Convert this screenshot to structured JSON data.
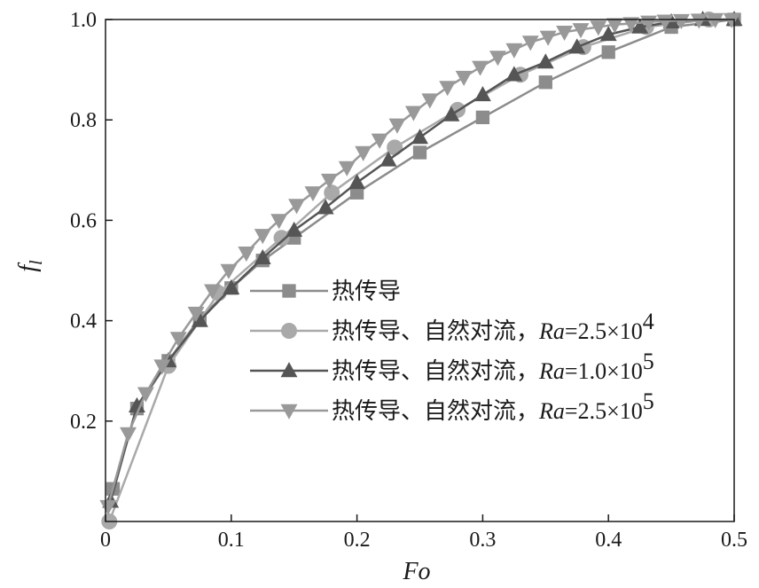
{
  "chart_data": {
    "type": "line",
    "xlabel": "Fo",
    "ylabel_main": "f",
    "ylabel_sub": "l",
    "xlim": [
      0,
      0.5
    ],
    "ylim": [
      0,
      1.0
    ],
    "x_ticks": [
      0,
      0.1,
      0.2,
      0.3,
      0.4,
      0.5
    ],
    "x_tick_labels": [
      "0",
      "0.1",
      "0.2",
      "0.3",
      "0.4",
      "0.5"
    ],
    "y_ticks": [
      0.2,
      0.4,
      0.6,
      0.8,
      1.0
    ],
    "y_tick_labels": [
      "0.2",
      "0.4",
      "0.6",
      "0.8",
      "1.0"
    ],
    "grid": false,
    "legend_position": "center-right",
    "series": [
      {
        "name": "热传导",
        "name_ra": "",
        "marker": "square",
        "color": "#8c8c8c",
        "x": [
          0.006,
          0.025,
          0.05,
          0.075,
          0.1,
          0.125,
          0.15,
          0.2,
          0.25,
          0.3,
          0.35,
          0.4,
          0.45,
          0.5
        ],
        "y": [
          0.065,
          0.225,
          0.32,
          0.405,
          0.465,
          0.52,
          0.565,
          0.655,
          0.735,
          0.805,
          0.875,
          0.935,
          0.985,
          1.0
        ]
      },
      {
        "name": "热传导、自然对流，",
        "name_ra": "2.5×10",
        "name_ra_exp": "4",
        "marker": "circle",
        "color": "#a9a9a9",
        "x": [
          0.003,
          0.05,
          0.09,
          0.14,
          0.18,
          0.23,
          0.28,
          0.33,
          0.38,
          0.43,
          0.48
        ],
        "y": [
          0.0,
          0.31,
          0.455,
          0.565,
          0.655,
          0.745,
          0.82,
          0.89,
          0.945,
          0.985,
          1.0
        ]
      },
      {
        "name": "热传导、自然对流，",
        "name_ra": "1.0×10",
        "name_ra_exp": "5",
        "marker": "triangle-up",
        "color": "#555555",
        "x": [
          0.004,
          0.025,
          0.05,
          0.075,
          0.1,
          0.125,
          0.15,
          0.175,
          0.2,
          0.225,
          0.25,
          0.275,
          0.3,
          0.325,
          0.35,
          0.375,
          0.4,
          0.425,
          0.45,
          0.475,
          0.5
        ],
        "y": [
          0.04,
          0.23,
          0.32,
          0.4,
          0.465,
          0.525,
          0.58,
          0.625,
          0.675,
          0.72,
          0.765,
          0.81,
          0.85,
          0.89,
          0.915,
          0.945,
          0.97,
          0.985,
          0.995,
          1.0,
          1.0
        ]
      },
      {
        "name": "热传导、自然对流，",
        "name_ra": "2.5×10",
        "name_ra_exp": "5",
        "marker": "triangle-down",
        "color": "#999999",
        "x": [
          0.002,
          0.018,
          0.032,
          0.045,
          0.058,
          0.072,
          0.085,
          0.098,
          0.112,
          0.125,
          0.138,
          0.152,
          0.165,
          0.178,
          0.192,
          0.205,
          0.218,
          0.232,
          0.245,
          0.258,
          0.272,
          0.285,
          0.298,
          0.312,
          0.325,
          0.338,
          0.352,
          0.365,
          0.378,
          0.392,
          0.405,
          0.418,
          0.432,
          0.445,
          0.458,
          0.472,
          0.485,
          0.498
        ],
        "y": [
          0.03,
          0.175,
          0.255,
          0.31,
          0.365,
          0.415,
          0.46,
          0.5,
          0.535,
          0.57,
          0.6,
          0.63,
          0.655,
          0.68,
          0.705,
          0.735,
          0.76,
          0.79,
          0.815,
          0.84,
          0.865,
          0.885,
          0.905,
          0.925,
          0.94,
          0.955,
          0.965,
          0.975,
          0.98,
          0.985,
          0.99,
          0.992,
          0.995,
          0.997,
          0.998,
          0.999,
          1.0,
          1.0
        ]
      }
    ]
  }
}
